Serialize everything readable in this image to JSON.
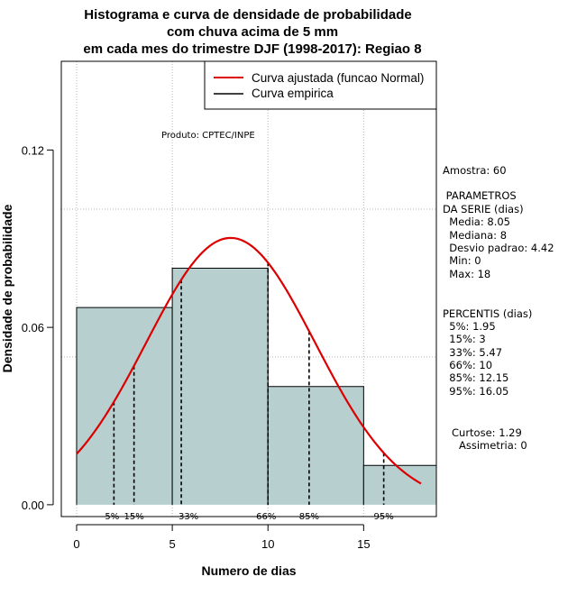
{
  "chart_data": {
    "type": "histogram",
    "title_lines": [
      "Histograma e curva de densidade de probabilidade",
      "com chuva acima de 5 mm",
      "em cada mes do trimestre DJF (1998-2017): Regiao 8"
    ],
    "xlabel": "Numero de dias",
    "ylabel": "Densidade de probabilidade",
    "xlim": [
      -0.8,
      18.8
    ],
    "ylim": [
      -0.004,
      0.15
    ],
    "x_ticks": [
      0,
      5,
      10,
      15
    ],
    "x_tick_labels": [
      "0",
      "5",
      "10",
      "15"
    ],
    "y_ticks": [
      0.0,
      0.06,
      0.12
    ],
    "y_tick_labels": [
      "0.00",
      "0.06",
      "0.12"
    ],
    "grid_x": [
      0,
      5,
      10,
      15
    ],
    "grid_y": [
      0.05,
      0.1
    ],
    "bins": [
      {
        "start": 0,
        "end": 5,
        "density": 0.0667
      },
      {
        "start": 5,
        "end": 10,
        "density": 0.08
      },
      {
        "start": 10,
        "end": 15,
        "density": 0.04
      },
      {
        "start": 15,
        "end": 18.8,
        "density": 0.0133
      }
    ],
    "bar_color": "#b7cfcf",
    "normal_fit": {
      "mean": 8.05,
      "sd": 4.42,
      "x_start": 0,
      "x_end": 18,
      "color": "#dd0000"
    },
    "percentiles": [
      {
        "label": "5%",
        "value": 1.95
      },
      {
        "label": "15%",
        "value": 3
      },
      {
        "label": "33%",
        "value": 5.47
      },
      {
        "label": "66%",
        "value": 10
      },
      {
        "label": "85%",
        "value": 12.15
      },
      {
        "label": "95%",
        "value": 16.05
      }
    ],
    "legend": [
      {
        "label": "Curva ajustada (funcao Normal)",
        "color": "#dd0000"
      },
      {
        "label": "Curva empirica",
        "color": "#000000"
      }
    ],
    "legend_position": "top-right",
    "product_label": "Produto: CPTEC/INPE"
  },
  "side_panel": {
    "sample": "Amostra: 60",
    "params_title_1": " PARAMETROS",
    "params_title_2": "DA SERIE (dias)",
    "params": [
      "  Media: 8.05",
      "  Mediana: 8",
      "  Desvio padrao: 4.42",
      "  Min: 0",
      "  Max: 18"
    ],
    "percentis_title": "PERCENTIS (dias)",
    "percentis": [
      "  5%: 1.95",
      "  15%: 3",
      "  33%: 5.47",
      "  66%: 10",
      "  85%: 12.15",
      "  95%: 16.05"
    ],
    "curtose": "Curtose: 1.29",
    "assimetria": "Assimetria: 0"
  }
}
